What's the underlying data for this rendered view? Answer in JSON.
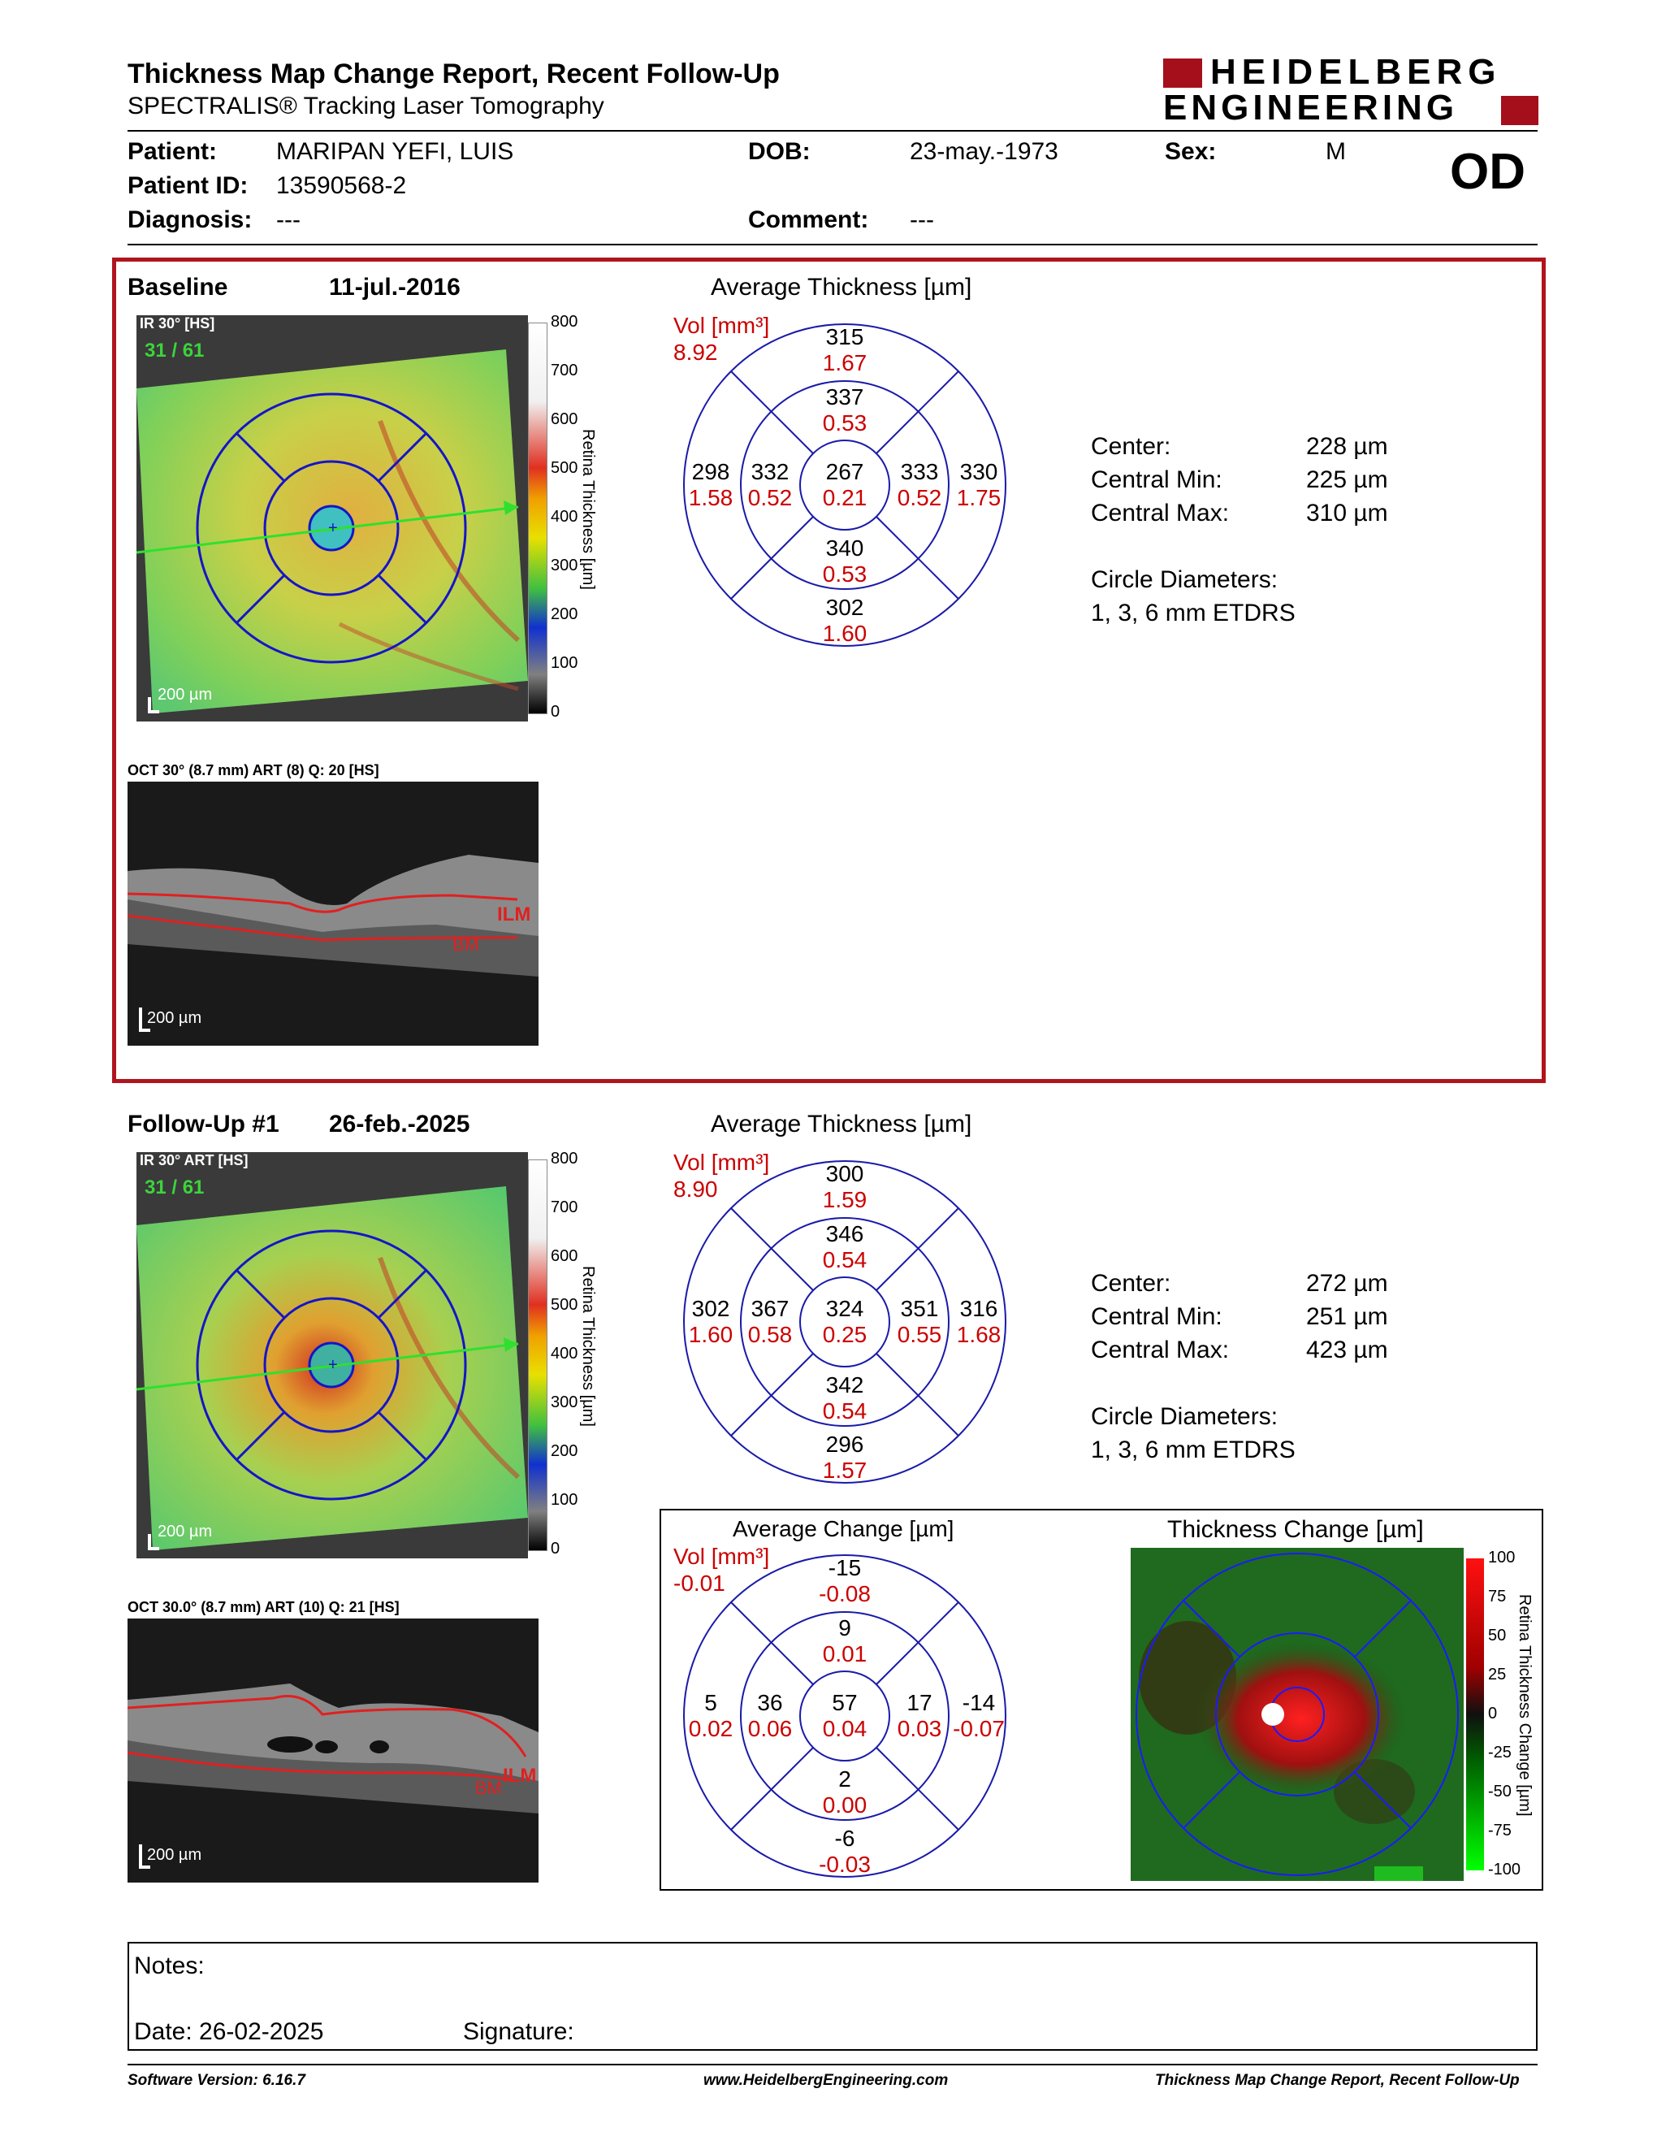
{
  "header": {
    "title": "Thickness Map Change Report, Recent Follow-Up",
    "subtitle": "SPECTRALIS® Tracking Laser Tomography",
    "brand_line1": "HEIDELBERG",
    "brand_line2": "ENGINEERING",
    "brand_color": "#a50f1c"
  },
  "patient": {
    "patient_label": "Patient:",
    "patient_value": "MARIPAN YEFI, LUIS",
    "dob_label": "DOB:",
    "dob_value": "23-may.-1973",
    "sex_label": "Sex:",
    "sex_value": "M",
    "eye": "OD",
    "id_label": "Patient ID:",
    "id_value": "13590568-2",
    "diagnosis_label": "Diagnosis:",
    "diagnosis_value": "---",
    "comment_label": "Comment:",
    "comment_value": "---"
  },
  "baseline": {
    "label": "Baseline",
    "date": "11-jul.-2016",
    "ir_caption": "IR 30° [HS]",
    "frame": "31 / 61",
    "scale_bar": "200 µm",
    "colorbar_title": "Retina Thickness [µm]",
    "colorbar_ticks": [
      "800",
      "700",
      "600",
      "500",
      "400",
      "300",
      "200",
      "100",
      "0"
    ],
    "oct_caption": "OCT 30° (8.7 mm) ART (8) Q: 20 [HS]",
    "oct_scale": "200 µm",
    "oct_ilm": "ILM",
    "oct_bm": "BM",
    "etdrs_title": "Average Thickness [µm]",
    "vol_label": "Vol [mm³]",
    "vol_value": "8.92",
    "etdrs": {
      "sup_outer": [
        "315",
        "1.67"
      ],
      "sup_inner": [
        "337",
        "0.53"
      ],
      "temp_outer": [
        "298",
        "1.58"
      ],
      "temp_inner": [
        "332",
        "0.52"
      ],
      "center": [
        "267",
        "0.21"
      ],
      "nas_inner": [
        "333",
        "0.52"
      ],
      "nas_outer": [
        "330",
        "1.75"
      ],
      "inf_inner": [
        "340",
        "0.53"
      ],
      "inf_outer": [
        "302",
        "1.60"
      ]
    },
    "stats": {
      "center_label": "Center:",
      "center_value": "228 µm",
      "min_label": "Central Min:",
      "min_value": "225 µm",
      "max_label": "Central Max:",
      "max_value": "310 µm",
      "diam_label": "Circle Diameters:",
      "diam_value": "1, 3, 6 mm ETDRS"
    }
  },
  "followup": {
    "label": "Follow-Up #1",
    "date": "26-feb.-2025",
    "ir_caption": "IR 30° ART [HS]",
    "frame": "31 / 61",
    "scale_bar": "200 µm",
    "colorbar_title": "Retina Thickness [µm]",
    "colorbar_ticks": [
      "800",
      "700",
      "600",
      "500",
      "400",
      "300",
      "200",
      "100",
      "0"
    ],
    "oct_caption": "OCT 30.0° (8.7 mm) ART (10) Q: 21 [HS]",
    "oct_scale": "200 µm",
    "oct_ilm": "ILM",
    "oct_bm": "BM",
    "etdrs_title": "Average Thickness [µm]",
    "vol_label": "Vol [mm³]",
    "vol_value": "8.90",
    "etdrs": {
      "sup_outer": [
        "300",
        "1.59"
      ],
      "sup_inner": [
        "346",
        "0.54"
      ],
      "temp_outer": [
        "302",
        "1.60"
      ],
      "temp_inner": [
        "367",
        "0.58"
      ],
      "center": [
        "324",
        "0.25"
      ],
      "nas_inner": [
        "351",
        "0.55"
      ],
      "nas_outer": [
        "316",
        "1.68"
      ],
      "inf_inner": [
        "342",
        "0.54"
      ],
      "inf_outer": [
        "296",
        "1.57"
      ]
    },
    "stats": {
      "center_label": "Center:",
      "center_value": "272 µm",
      "min_label": "Central Min:",
      "min_value": "251 µm",
      "max_label": "Central Max:",
      "max_value": "423 µm",
      "diam_label": "Circle Diameters:",
      "diam_value": "1, 3, 6 mm ETDRS"
    }
  },
  "change": {
    "etdrs_title": "Average Change [µm]",
    "vol_label": "Vol [mm³]",
    "vol_value": "-0.01",
    "etdrs": {
      "sup_outer": [
        "-15",
        "-0.08"
      ],
      "sup_inner": [
        "9",
        "0.01"
      ],
      "temp_outer": [
        "5",
        "0.02"
      ],
      "temp_inner": [
        "36",
        "0.06"
      ],
      "center": [
        "57",
        "0.04"
      ],
      "nas_inner": [
        "17",
        "0.03"
      ],
      "nas_outer": [
        "-14",
        "-0.07"
      ],
      "inf_inner": [
        "2",
        "0.00"
      ],
      "inf_outer": [
        "-6",
        "-0.03"
      ]
    },
    "map_title": "Thickness Change [µm]",
    "colorbar_title": "Retina Thickness Change [µm]",
    "colorbar_ticks": [
      "100",
      "75",
      "50",
      "25",
      "0",
      "-25",
      "-50",
      "-75",
      "-100"
    ]
  },
  "notes": {
    "notes_label": "Notes:",
    "date_label": "Date: 26-02-2025",
    "signature_label": "Signature:"
  },
  "footer": {
    "software": "Software Version: 6.16.7",
    "website": "www.HeidelbergEngineering.com",
    "report": "Thickness Map Change Report, Recent Follow-Up"
  }
}
